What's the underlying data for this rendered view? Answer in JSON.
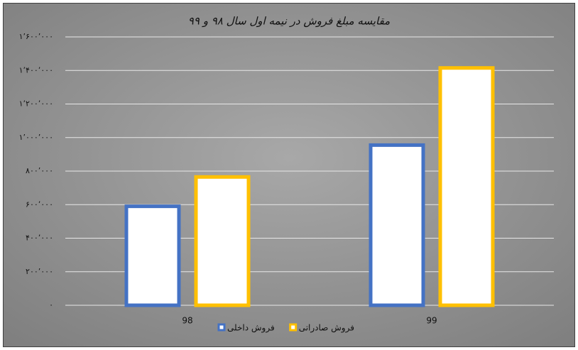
{
  "chart_data": {
    "type": "bar",
    "title": "مقایسه مبلغ فروش در نیمه اول سال ۹۸ و ۹۹",
    "categories": [
      "98",
      "99"
    ],
    "series": [
      {
        "name": "فروش داخلی",
        "color": "#4472c4",
        "values": [
          590000,
          955000
        ]
      },
      {
        "name": "فروش صادراتی",
        "color": "#ffc000",
        "values": [
          765000,
          1415000
        ]
      }
    ],
    "ylim": [
      0,
      1600000
    ],
    "yticks": [
      {
        "value": 0,
        "label": "۰"
      },
      {
        "value": 200000,
        "label": "۲۰۰٬۰۰۰"
      },
      {
        "value": 400000,
        "label": "۴۰۰٬۰۰۰"
      },
      {
        "value": 600000,
        "label": "۶۰۰٬۰۰۰"
      },
      {
        "value": 800000,
        "label": "۸۰۰٬۰۰۰"
      },
      {
        "value": 1000000,
        "label": "۱٬۰۰۰٬۰۰۰"
      },
      {
        "value": 1200000,
        "label": "۱٬۲۰۰٬۰۰۰"
      },
      {
        "value": 1400000,
        "label": "۱٬۴۰۰٬۰۰۰"
      },
      {
        "value": 1600000,
        "label": "۱٬۶۰۰٬۰۰۰"
      }
    ],
    "grid": true,
    "legend": "bottom"
  }
}
